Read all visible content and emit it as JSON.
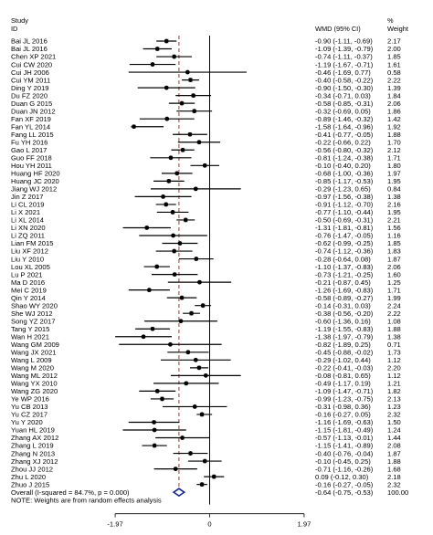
{
  "chart_data": {
    "type": "forest",
    "headers": {
      "study_line1": "Study",
      "study_line2": "ID",
      "effect": "WMD (95% CI)",
      "weight_line1": "%",
      "weight_line2": "Weight"
    },
    "studies": [
      {
        "id": "Bai JL 2016",
        "wmd": -0.9,
        "lo": -1.11,
        "hi": -0.69,
        "ci_text": "-0.90 (-1.11, -0.69)",
        "weight": "2.17"
      },
      {
        "id": "Bai JL 2016",
        "wmd": -1.09,
        "lo": -1.39,
        "hi": -0.79,
        "ci_text": "-1.09 (-1.39, -0.79)",
        "weight": "2.00"
      },
      {
        "id": "Chen XP 2021",
        "wmd": -0.74,
        "lo": -1.11,
        "hi": -0.37,
        "ci_text": "-0.74 (-1.11, -0.37)",
        "weight": "1.85"
      },
      {
        "id": "Cui CW 2020",
        "wmd": -1.19,
        "lo": -1.67,
        "hi": -0.71,
        "ci_text": "-1.19 (-1.67, -0.71)",
        "weight": "1.61"
      },
      {
        "id": "Cui JH 2006",
        "wmd": -0.46,
        "lo": -1.69,
        "hi": 0.77,
        "ci_text": "-0.46 (-1.69, 0.77)",
        "weight": "0.58"
      },
      {
        "id": "Cui YM 2011",
        "wmd": -0.4,
        "lo": -0.58,
        "hi": -0.22,
        "ci_text": "-0.40 (-0.58, -0.22)",
        "weight": "2.22"
      },
      {
        "id": "Ding Y 2019",
        "wmd": -0.9,
        "lo": -1.5,
        "hi": -0.3,
        "ci_text": "-0.90 (-1.50, -0.30)",
        "weight": "1.39"
      },
      {
        "id": "Du FZ 2020",
        "wmd": -0.34,
        "lo": -0.71,
        "hi": 0.03,
        "ci_text": "-0.34 (-0.71, 0.03)",
        "weight": "1.84"
      },
      {
        "id": "Duan G 2015",
        "wmd": -0.58,
        "lo": -0.85,
        "hi": -0.31,
        "ci_text": "-0.58 (-0.85, -0.31)",
        "weight": "2.06"
      },
      {
        "id": "Duan JN 2012",
        "wmd": -0.32,
        "lo": -0.69,
        "hi": 0.05,
        "ci_text": "-0.32 (-0.69, 0.05)",
        "weight": "1.86"
      },
      {
        "id": "Fan XF 2019",
        "wmd": -0.89,
        "lo": -1.46,
        "hi": -0.32,
        "ci_text": "-0.89 (-1.46, -0.32)",
        "weight": "1.42"
      },
      {
        "id": "Fan YL 2014",
        "wmd": -1.58,
        "lo": -1.64,
        "hi": -0.96,
        "ci_text": "-1.58 (-1.64, -0.96)",
        "weight": "1.92"
      },
      {
        "id": "Fang LL 2015",
        "wmd": -0.41,
        "lo": -0.77,
        "hi": -0.05,
        "ci_text": "-0.41 (-0.77, -0.05)",
        "weight": "1.88"
      },
      {
        "id": "Fu YH 2016",
        "wmd": -0.22,
        "lo": -0.66,
        "hi": 0.22,
        "ci_text": "-0.22 (-0.66, 0.22)",
        "weight": "1.70"
      },
      {
        "id": "Gao L 2017",
        "wmd": -0.56,
        "lo": -0.8,
        "hi": -0.32,
        "ci_text": "-0.56 (-0.80, -0.32)",
        "weight": "2.12"
      },
      {
        "id": "Guo FF 2018",
        "wmd": -0.81,
        "lo": -1.24,
        "hi": -0.38,
        "ci_text": "-0.81 (-1.24, -0.38)",
        "weight": "1.71"
      },
      {
        "id": "Hou YH 2011",
        "wmd": -0.1,
        "lo": -0.4,
        "hi": 0.2,
        "ci_text": "-0.10 (-0.40, 0.20)",
        "weight": "1.80"
      },
      {
        "id": "Huang HF 2020",
        "wmd": -0.68,
        "lo": -1.0,
        "hi": -0.36,
        "ci_text": "-0.68 (-1.00, -0.36)",
        "weight": "1.97"
      },
      {
        "id": "Huang JC 2020",
        "wmd": -0.85,
        "lo": -1.17,
        "hi": -0.53,
        "ci_text": "-0.85 (-1.17, -0.53)",
        "weight": "1.95"
      },
      {
        "id": "Jiang WJ 2012",
        "wmd": -0.29,
        "lo": -1.23,
        "hi": 0.65,
        "ci_text": "-0.29 (-1.23, 0.65)",
        "weight": "0.84"
      },
      {
        "id": "Jin Z 2017",
        "wmd": -0.97,
        "lo": -1.56,
        "hi": -0.38,
        "ci_text": "-0.97 (-1.56, -0.38)",
        "weight": "1.38"
      },
      {
        "id": "Li CL 2019",
        "wmd": -0.91,
        "lo": -1.12,
        "hi": -0.7,
        "ci_text": "-0.91 (-1.12, -0.70)",
        "weight": "2.16"
      },
      {
        "id": "Li X 2021",
        "wmd": -0.77,
        "lo": -1.1,
        "hi": -0.44,
        "ci_text": "-0.77 (-1.10, -0.44)",
        "weight": "1.95"
      },
      {
        "id": "Li XL 2014",
        "wmd": -0.5,
        "lo": -0.69,
        "hi": -0.31,
        "ci_text": "-0.50 (-0.69, -0.31)",
        "weight": "2.21"
      },
      {
        "id": "Li XN 2020",
        "wmd": -1.31,
        "lo": -1.81,
        "hi": -0.81,
        "ci_text": "-1.31 (-1.81, -0.81)",
        "weight": "1.56"
      },
      {
        "id": "Li ZQ 2011",
        "wmd": -0.76,
        "lo": -1.47,
        "hi": -0.05,
        "ci_text": "-0.76 (-1.47, -0.05)",
        "weight": "1.16"
      },
      {
        "id": "Lian FM 2015",
        "wmd": -0.62,
        "lo": -0.99,
        "hi": -0.25,
        "ci_text": "-0.62 (-0.99, -0.25)",
        "weight": "1.85"
      },
      {
        "id": "Liu XF 2012",
        "wmd": -0.74,
        "lo": -1.12,
        "hi": -0.36,
        "ci_text": "-0.74 (-1.12, -0.36)",
        "weight": "1.83"
      },
      {
        "id": "Liu Y 2010",
        "wmd": -0.28,
        "lo": -0.64,
        "hi": 0.08,
        "ci_text": "-0.28 (-0.64, 0.08)",
        "weight": "1.87"
      },
      {
        "id": "Lou XL 2005",
        "wmd": -1.1,
        "lo": -1.37,
        "hi": -0.83,
        "ci_text": "-1.10 (-1.37, -0.83)",
        "weight": "2.06"
      },
      {
        "id": "Lu P 2021",
        "wmd": -0.73,
        "lo": -1.21,
        "hi": -0.25,
        "ci_text": "-0.73 (-1.21, -0.25)",
        "weight": "1.60"
      },
      {
        "id": "Ma D 2016",
        "wmd": -0.21,
        "lo": -0.87,
        "hi": 0.45,
        "ci_text": "-0.21 (-0.87, 0.45)",
        "weight": "1.25"
      },
      {
        "id": "Mei C 2019",
        "wmd": -1.26,
        "lo": -1.69,
        "hi": -0.83,
        "ci_text": "-1.26 (-1.69, -0.83)",
        "weight": "1.71"
      },
      {
        "id": "Qin Y 2014",
        "wmd": -0.58,
        "lo": -0.89,
        "hi": -0.27,
        "ci_text": "-0.58 (-0.89, -0.27)",
        "weight": "1.99"
      },
      {
        "id": "Shao WY 2020",
        "wmd": -0.14,
        "lo": -0.31,
        "hi": 0.03,
        "ci_text": "-0.14 (-0.31, 0.03)",
        "weight": "2.24"
      },
      {
        "id": "She WJ 2012",
        "wmd": -0.38,
        "lo": -0.56,
        "hi": -0.2,
        "ci_text": "-0.38 (-0.56, -0.20)",
        "weight": "2.22"
      },
      {
        "id": "Song YZ 2017",
        "wmd": -0.6,
        "lo": -1.36,
        "hi": 0.16,
        "ci_text": "-0.60 (-1.36, 0.16)",
        "weight": "1.08"
      },
      {
        "id": "Tang Y 2015",
        "wmd": -1.19,
        "lo": -1.55,
        "hi": -0.83,
        "ci_text": "-1.19 (-1.55, -0.83)",
        "weight": "1.88"
      },
      {
        "id": "Wan H 2021",
        "wmd": -1.38,
        "lo": -1.97,
        "hi": -0.79,
        "ci_text": "-1.38 (-1.97, -0.79)",
        "weight": "1.38"
      },
      {
        "id": "Wang GM 2009",
        "wmd": -0.82,
        "lo": -1.89,
        "hi": 0.25,
        "ci_text": "-0.82 (-1.89, 0.25)",
        "weight": "0.71"
      },
      {
        "id": "Wang JX 2021",
        "wmd": -0.45,
        "lo": -0.88,
        "hi": -0.02,
        "ci_text": "-0.45 (-0.88, -0.02)",
        "weight": "1.73"
      },
      {
        "id": "Wang L 2009",
        "wmd": -0.29,
        "lo": -1.02,
        "hi": 0.44,
        "ci_text": "-0.29 (-1.02, 0.44)",
        "weight": "1.12"
      },
      {
        "id": "Wang M 2020",
        "wmd": -0.22,
        "lo": -0.41,
        "hi": -0.03,
        "ci_text": "-0.22 (-0.41, -0.03)",
        "weight": "2.20"
      },
      {
        "id": "Wang ML 2012",
        "wmd": -0.08,
        "lo": -0.81,
        "hi": 0.65,
        "ci_text": "-0.08 (-0.81, 0.65)",
        "weight": "1.12"
      },
      {
        "id": "Wang YX 2010",
        "wmd": -0.49,
        "lo": -1.17,
        "hi": 0.19,
        "ci_text": "-0.49 (-1.17, 0.19)",
        "weight": "1.21"
      },
      {
        "id": "Wang ZG 2020",
        "wmd": -1.09,
        "lo": -1.47,
        "hi": -0.71,
        "ci_text": "-1.09 (-1.47, -0.71)",
        "weight": "1.82"
      },
      {
        "id": "Ye WP 2016",
        "wmd": -0.99,
        "lo": -1.23,
        "hi": -0.75,
        "ci_text": "-0.99 (-1.23, -0.75)",
        "weight": "2.13"
      },
      {
        "id": "Yu CB 2013",
        "wmd": -0.31,
        "lo": -0.98,
        "hi": 0.36,
        "ci_text": "-0.31 (-0.98, 0.36)",
        "weight": "1.23"
      },
      {
        "id": "Yu CZ 2017",
        "wmd": -0.16,
        "lo": -0.27,
        "hi": 0.05,
        "ci_text": "-0.16 (-0.27, 0.05)",
        "weight": "2.32"
      },
      {
        "id": "Yu Y 2020",
        "wmd": -1.16,
        "lo": -1.69,
        "hi": -0.63,
        "ci_text": "-1.16 (-1.69, -0.63)",
        "weight": "1.50"
      },
      {
        "id": "Yuan HL 2019",
        "wmd": -1.15,
        "lo": -1.81,
        "hi": -0.49,
        "ci_text": "-1.15 (-1.81, -0.49)",
        "weight": "1.24"
      },
      {
        "id": "Zhang AX 2012",
        "wmd": -0.57,
        "lo": -1.13,
        "hi": -0.01,
        "ci_text": "-0.57 (-1.13, -0.01)",
        "weight": "1.44"
      },
      {
        "id": "Zhang L 2019",
        "wmd": -1.15,
        "lo": -1.41,
        "hi": -0.89,
        "ci_text": "-1.15 (-1.41, -0.89)",
        "weight": "2.08"
      },
      {
        "id": "Zhang N 2013",
        "wmd": -0.4,
        "lo": -0.76,
        "hi": -0.04,
        "ci_text": "-0.40 (-0.76, -0.04)",
        "weight": "1.87"
      },
      {
        "id": "Zhang XJ 2012",
        "wmd": -0.1,
        "lo": -0.45,
        "hi": 0.25,
        "ci_text": "-0.10 (-0.45, 0.25)",
        "weight": "1.88"
      },
      {
        "id": "Zhou JJ 2012",
        "wmd": -0.71,
        "lo": -1.16,
        "hi": -0.26,
        "ci_text": "-0.71 (-1.16, -0.26)",
        "weight": "1.68"
      },
      {
        "id": "Zhu L 2020",
        "wmd": 0.09,
        "lo": -0.12,
        "hi": 0.3,
        "ci_text": "0.09 (-0.12, 0.30)",
        "weight": "2.18"
      },
      {
        "id": "Zhuo J 2015",
        "wmd": -0.16,
        "lo": -0.27,
        "hi": -0.05,
        "ci_text": "-0.16 (-0.27, -0.05)",
        "weight": "2.32"
      }
    ],
    "overall": {
      "label": "Overall  (I-squared = 84.7%, p = 0.000)",
      "wmd": -0.64,
      "lo": -0.75,
      "hi": -0.53,
      "ci_text": "-0.64 (-0.75, -0.53)",
      "weight": "100.00"
    },
    "note": "NOTE: Weights are from random effects analysis",
    "xaxis": {
      "ticks": [
        -1.97,
        0,
        1.97
      ],
      "tick_labels": [
        "-1.97",
        "0",
        "1.97"
      ],
      "range": [
        -1.97,
        1.97
      ]
    },
    "null_line": 0,
    "pooled_line": -0.64,
    "colors": {
      "point": "#000000",
      "pooled_line": "#b03030",
      "diamond": "#1a2a8c"
    }
  }
}
